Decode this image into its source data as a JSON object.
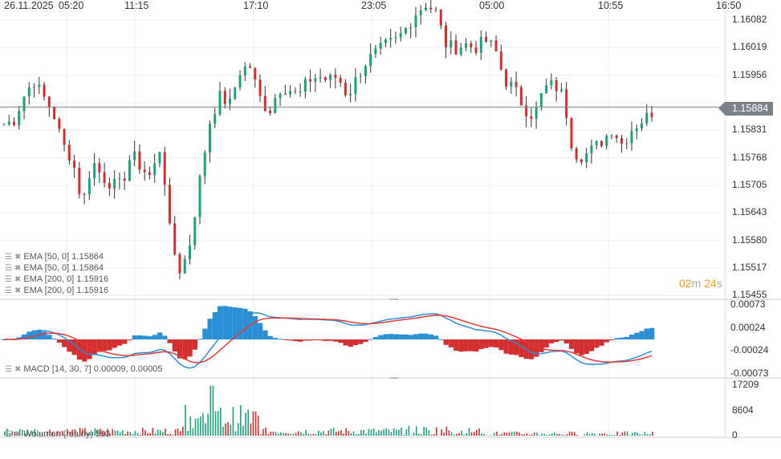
{
  "chart_data": {
    "type": "candlestick",
    "instrument_price_current": "1.15884",
    "closes": [
      1.15844,
      1.15853,
      1.15908,
      1.15945,
      1.15908,
      1.15872,
      1.15798,
      1.15762,
      1.15661,
      1.15762,
      1.15725,
      1.15707,
      1.15707,
      1.1578,
      1.15744,
      1.15725,
      1.15798,
      1.15579,
      1.15506,
      1.15579,
      1.15725,
      1.15853,
      1.15908,
      1.1589,
      1.15963,
      1.15981,
      1.15908,
      1.15872,
      1.15926,
      1.15926,
      1.15908,
      1.15945,
      1.15954,
      1.15945,
      1.15954,
      1.15908,
      1.15954,
      1.1599,
      1.16009,
      1.16027,
      1.16036,
      1.16064,
      1.161,
      1.16119,
      1.161,
      1.16027,
      1.16018,
      1.16027,
      1.16018,
      1.16036,
      1.16018,
      1.15945,
      1.15926,
      1.15881,
      1.15862,
      1.15926,
      1.15936,
      1.15908,
      1.1578,
      1.15771,
      1.15789,
      1.15808,
      1.15835,
      1.15798,
      1.15835,
      1.15853,
      1.15872
    ],
    "price_axis": {
      "ticks": [
        "1.16082",
        "1.16019",
        "1.15956",
        "1.15894",
        "1.15831",
        "1.15768",
        "1.15705",
        "1.15643",
        "1.15580",
        "1.15517",
        "1.15455"
      ],
      "range": [
        1.15455,
        1.16082
      ]
    },
    "macd_axis": {
      "ticks": [
        "0.00073",
        "0.00024",
        "-0.00024",
        "-0.00073"
      ],
      "range": [
        -0.00073,
        0.00073
      ]
    },
    "volume_axis": {
      "ticks": [
        "17209",
        "8604",
        "0"
      ],
      "max": 17209
    },
    "time_axis": [
      "26.11.2025",
      "05:20",
      "11:15",
      "17:10",
      "23:05",
      "05:00",
      "10:55",
      "16:50"
    ],
    "colors": {
      "up": "#1aa37a",
      "down": "#d32f2f",
      "macd": "#2b8fd6",
      "signal": "#e53935",
      "grid": "#eeeeee"
    }
  },
  "indicators": [
    {
      "label": "EMA [50,  0] 1.15864"
    },
    {
      "label": "EMA [50,  0] 1.15864"
    },
    {
      "label": "EMA [200,  0] 1.15916"
    },
    {
      "label": "EMA [200,  0] 1.15916"
    }
  ],
  "macd_label": "MACD [14, 30, 7] 0.00009,  0.00005",
  "volume_label": "Wolumen  (realny)  593",
  "timer": {
    "min": "02",
    "m": "m",
    "sec": "24",
    "s": "s"
  }
}
